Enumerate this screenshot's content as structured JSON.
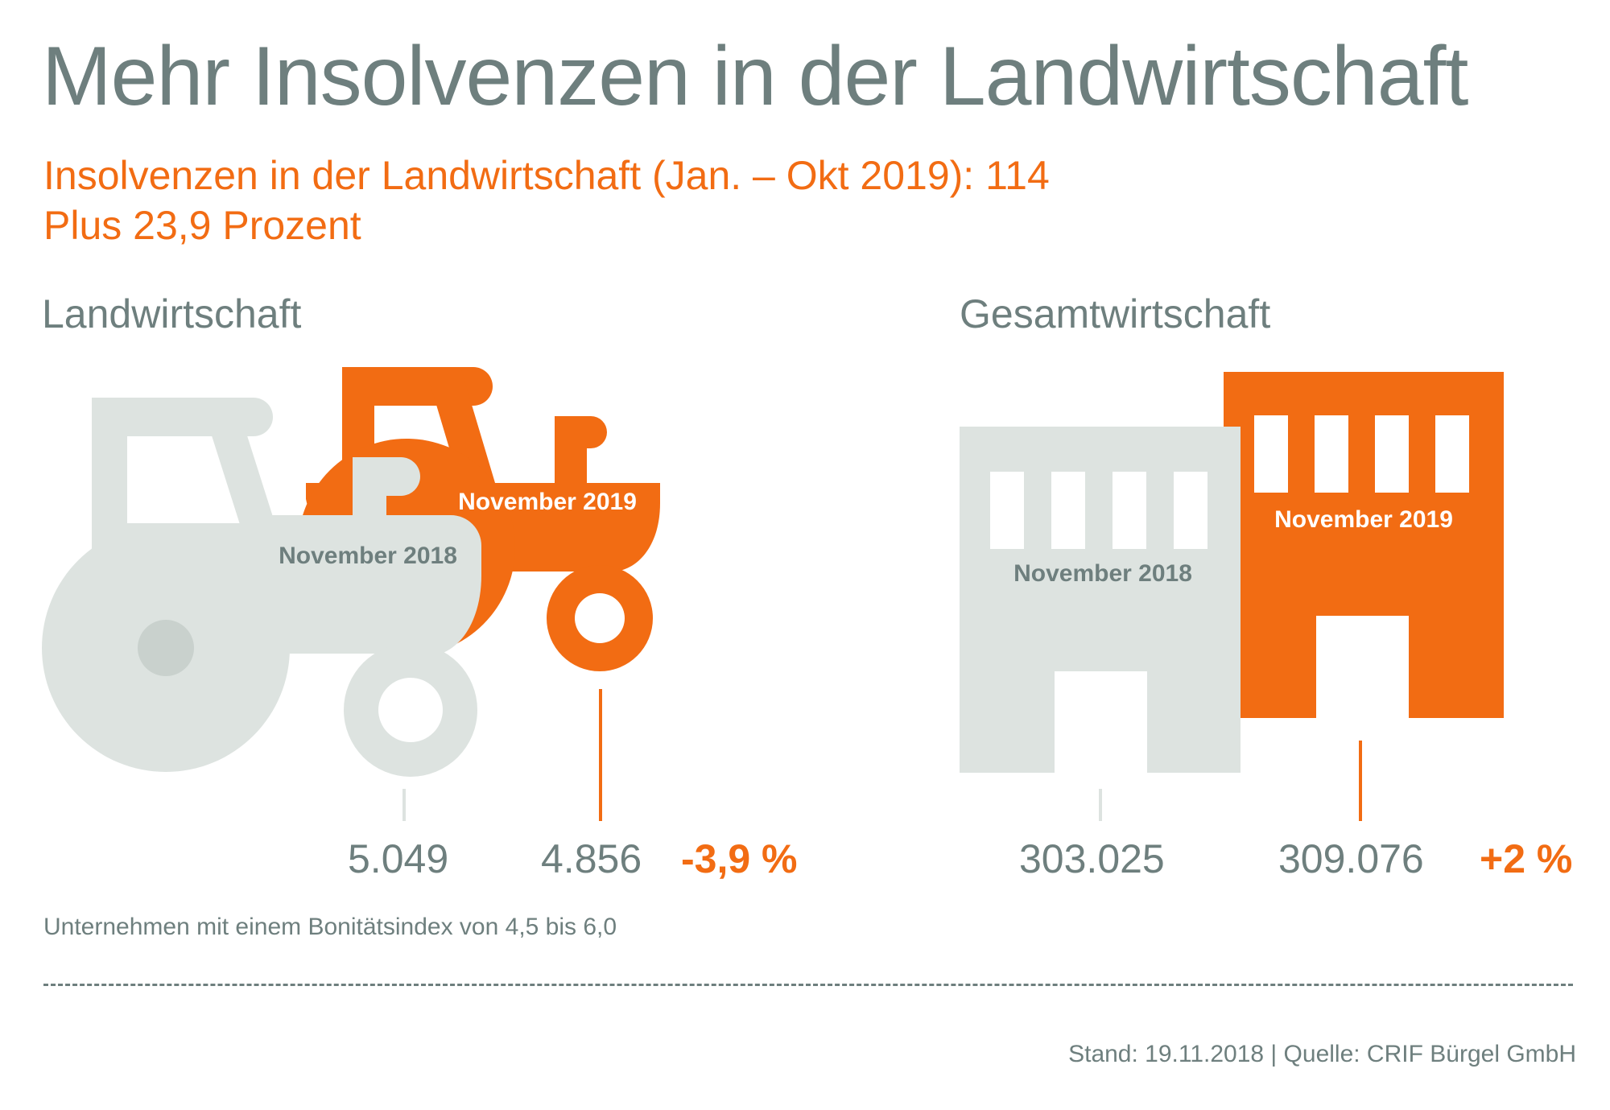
{
  "title": "Mehr Insolvenzen in der Landwirtschaft",
  "subtitle_line1": "Insolvenzen in der Landwirtschaft (Jan. – Okt 2019): 114",
  "subtitle_line2": "Plus 23,9 Prozent",
  "colors": {
    "orange": "#f26c13",
    "grey_icon": "#dde3e0",
    "grey_text": "#6e7f7e"
  },
  "chart_data": {
    "type": "table",
    "title": "Mehr Insolvenzen in der Landwirtschaft",
    "groups": [
      {
        "name": "Landwirtschaft",
        "icon": "tractor-icon",
        "series": [
          {
            "label": "November 2018",
            "value": 5049,
            "display": "5.049"
          },
          {
            "label": "November 2019",
            "value": 4856,
            "display": "4.856"
          }
        ],
        "change": "-3,9 %"
      },
      {
        "name": "Gesamtwirtschaft",
        "icon": "building-icon",
        "series": [
          {
            "label": "November 2018",
            "value": 303025,
            "display": "303.025"
          },
          {
            "label": "November 2019",
            "value": 309076,
            "display": "309.076"
          }
        ],
        "change": "+2 %"
      }
    ]
  },
  "footnote": "Unternehmen mit einem Bonitätsindex von 4,5 bis 6,0",
  "source": "Stand: 19.11.2018 | Quelle: CRIF Bürgel GmbH"
}
